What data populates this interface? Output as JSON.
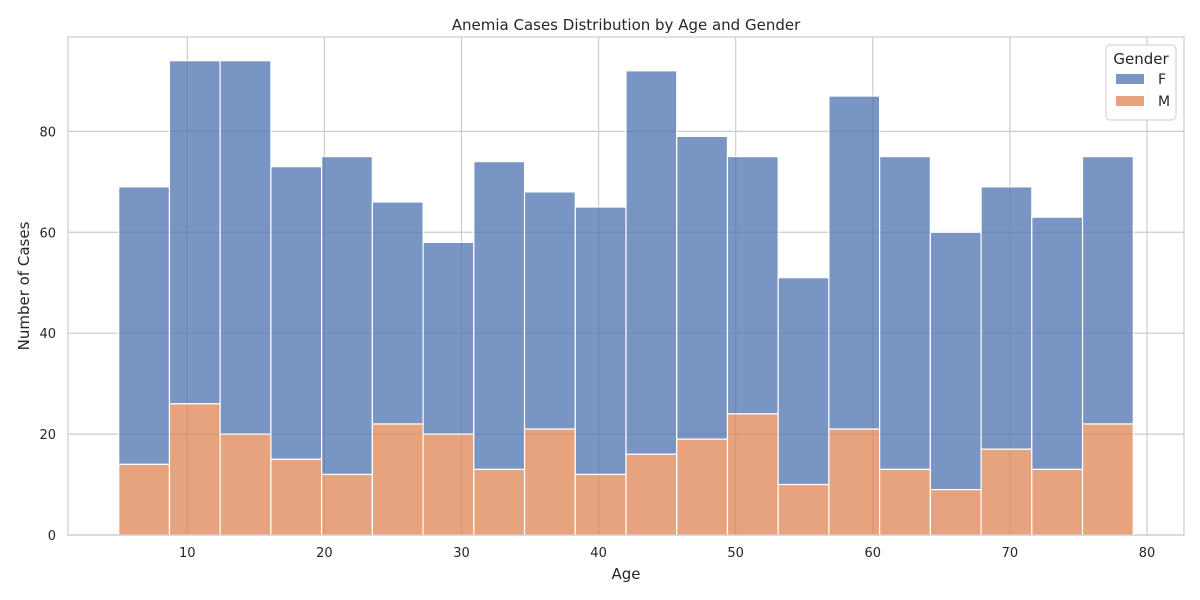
{
  "chart_data": {
    "type": "bar",
    "title": "Anemia Cases Distribution by Age and Gender",
    "xlabel": "Age",
    "ylabel": "Number of Cases",
    "xlim": [
      1.3,
      82.7
    ],
    "ylim": [
      0,
      98.7
    ],
    "x_ticks": [
      10,
      20,
      30,
      40,
      50,
      60,
      70,
      80
    ],
    "y_ticks": [
      0,
      20,
      40,
      60,
      80
    ],
    "bin_edges": [
      5,
      8.7,
      12.4,
      16.1,
      19.8,
      23.5,
      27.2,
      30.9,
      34.6,
      38.3,
      42,
      45.7,
      49.4,
      53.1,
      56.8,
      60.5,
      64.2,
      67.9,
      71.6,
      75.3,
      79
    ],
    "stacked": true,
    "grid": true,
    "legend_title": "Gender",
    "legend_position": "top-right",
    "series": [
      {
        "name": "M",
        "color": "#dd8452",
        "values": [
          14,
          26,
          20,
          15,
          12,
          22,
          20,
          13,
          21,
          12,
          16,
          19,
          24,
          10,
          21,
          13,
          9,
          17,
          13,
          22
        ]
      },
      {
        "name": "F",
        "color": "#4c72b0",
        "values": [
          55,
          68,
          74,
          58,
          63,
          44,
          38,
          61,
          47,
          53,
          76,
          60,
          51,
          41,
          66,
          62,
          51,
          52,
          50,
          53
        ]
      }
    ],
    "totals": [
      69,
      94,
      94,
      73,
      75,
      66,
      58,
      74,
      68,
      65,
      92,
      79,
      75,
      51,
      87,
      75,
      60,
      69,
      63,
      75
    ],
    "legend_order": [
      "F",
      "M"
    ]
  }
}
